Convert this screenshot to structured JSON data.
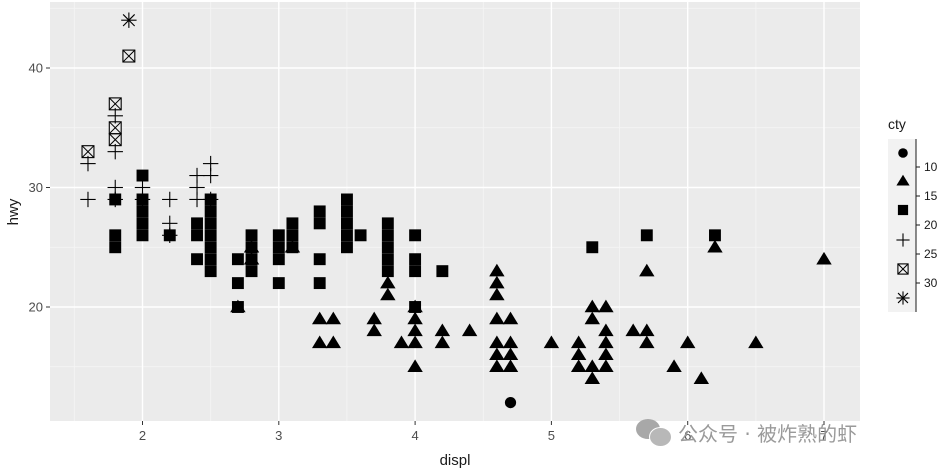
{
  "chart_data": {
    "type": "scatter",
    "title": "",
    "xlabel": "displ",
    "ylabel": "hwy",
    "xlim": [
      1.4,
      7.2
    ],
    "ylim": [
      10.4,
      44.6
    ],
    "x_ticks": [
      2,
      3,
      4,
      5,
      6,
      7
    ],
    "y_ticks": [
      20,
      30,
      40
    ],
    "grid": true,
    "legend_position": "right",
    "legend": {
      "title": "cty",
      "type": "binned-shape",
      "breaks": [
        "10",
        "15",
        "20",
        "25",
        "30"
      ],
      "shapes": [
        "circle",
        "triangle",
        "square",
        "plus",
        "boxed-x",
        "asterisk"
      ]
    },
    "points_format": "[displ, hwy, shape_index]",
    "points": [
      [
        1.6,
        29,
        3
      ],
      [
        1.6,
        32,
        3
      ],
      [
        1.6,
        33,
        4
      ],
      [
        1.8,
        25,
        2
      ],
      [
        1.8,
        26,
        2
      ],
      [
        1.8,
        29,
        2
      ],
      [
        1.8,
        29,
        3
      ],
      [
        1.8,
        30,
        3
      ],
      [
        1.8,
        33,
        3
      ],
      [
        1.8,
        34,
        4
      ],
      [
        1.8,
        35,
        4
      ],
      [
        1.8,
        36,
        3
      ],
      [
        1.8,
        37,
        4
      ],
      [
        1.9,
        41,
        4
      ],
      [
        1.9,
        44,
        5
      ],
      [
        2.0,
        26,
        2
      ],
      [
        2.0,
        27,
        2
      ],
      [
        2.0,
        28,
        2
      ],
      [
        2.0,
        29,
        2
      ],
      [
        2.0,
        29,
        3
      ],
      [
        2.0,
        30,
        3
      ],
      [
        2.0,
        31,
        2
      ],
      [
        2.2,
        26,
        2
      ],
      [
        2.2,
        26,
        3
      ],
      [
        2.2,
        27,
        3
      ],
      [
        2.2,
        29,
        3
      ],
      [
        2.4,
        24,
        2
      ],
      [
        2.4,
        26,
        2
      ],
      [
        2.4,
        27,
        2
      ],
      [
        2.4,
        29,
        3
      ],
      [
        2.4,
        30,
        3
      ],
      [
        2.4,
        31,
        3
      ],
      [
        2.5,
        23,
        2
      ],
      [
        2.5,
        24,
        2
      ],
      [
        2.5,
        25,
        2
      ],
      [
        2.5,
        26,
        2
      ],
      [
        2.5,
        27,
        2
      ],
      [
        2.5,
        28,
        2
      ],
      [
        2.5,
        29,
        2
      ],
      [
        2.5,
        29,
        3
      ],
      [
        2.5,
        31,
        3
      ],
      [
        2.5,
        32,
        3
      ],
      [
        2.7,
        20,
        1
      ],
      [
        2.7,
        20,
        2
      ],
      [
        2.7,
        22,
        2
      ],
      [
        2.7,
        24,
        2
      ],
      [
        2.8,
        23,
        2
      ],
      [
        2.8,
        24,
        1
      ],
      [
        2.8,
        24,
        2
      ],
      [
        2.8,
        25,
        1
      ],
      [
        2.8,
        25,
        2
      ],
      [
        2.8,
        26,
        2
      ],
      [
        3.0,
        22,
        2
      ],
      [
        3.0,
        24,
        2
      ],
      [
        3.0,
        25,
        2
      ],
      [
        3.0,
        26,
        2
      ],
      [
        3.1,
        25,
        1
      ],
      [
        3.1,
        25,
        2
      ],
      [
        3.1,
        26,
        2
      ],
      [
        3.1,
        27,
        2
      ],
      [
        3.3,
        17,
        1
      ],
      [
        3.3,
        19,
        1
      ],
      [
        3.3,
        22,
        2
      ],
      [
        3.3,
        24,
        2
      ],
      [
        3.3,
        27,
        2
      ],
      [
        3.3,
        28,
        2
      ],
      [
        3.4,
        17,
        1
      ],
      [
        3.4,
        19,
        1
      ],
      [
        3.5,
        25,
        2
      ],
      [
        3.5,
        26,
        2
      ],
      [
        3.5,
        27,
        2
      ],
      [
        3.5,
        28,
        2
      ],
      [
        3.5,
        29,
        2
      ],
      [
        3.6,
        26,
        2
      ],
      [
        3.7,
        18,
        1
      ],
      [
        3.7,
        19,
        1
      ],
      [
        3.8,
        21,
        1
      ],
      [
        3.8,
        22,
        1
      ],
      [
        3.8,
        23,
        2
      ],
      [
        3.8,
        24,
        2
      ],
      [
        3.8,
        25,
        2
      ],
      [
        3.8,
        26,
        2
      ],
      [
        3.8,
        27,
        2
      ],
      [
        3.9,
        17,
        1
      ],
      [
        4.0,
        15,
        1
      ],
      [
        4.0,
        17,
        1
      ],
      [
        4.0,
        18,
        1
      ],
      [
        4.0,
        19,
        1
      ],
      [
        4.0,
        20,
        1
      ],
      [
        4.0,
        20,
        2
      ],
      [
        4.0,
        23,
        2
      ],
      [
        4.0,
        24,
        2
      ],
      [
        4.0,
        26,
        2
      ],
      [
        4.2,
        17,
        1
      ],
      [
        4.2,
        18,
        1
      ],
      [
        4.2,
        23,
        2
      ],
      [
        4.4,
        18,
        1
      ],
      [
        4.6,
        15,
        1
      ],
      [
        4.6,
        16,
        1
      ],
      [
        4.6,
        17,
        1
      ],
      [
        4.6,
        19,
        1
      ],
      [
        4.6,
        21,
        1
      ],
      [
        4.6,
        22,
        1
      ],
      [
        4.6,
        23,
        1
      ],
      [
        4.7,
        12,
        0
      ],
      [
        4.7,
        15,
        1
      ],
      [
        4.7,
        16,
        1
      ],
      [
        4.7,
        17,
        1
      ],
      [
        4.7,
        19,
        1
      ],
      [
        5.0,
        17,
        1
      ],
      [
        5.2,
        15,
        1
      ],
      [
        5.2,
        16,
        1
      ],
      [
        5.2,
        17,
        1
      ],
      [
        5.3,
        14,
        1
      ],
      [
        5.3,
        15,
        1
      ],
      [
        5.3,
        19,
        1
      ],
      [
        5.3,
        20,
        1
      ],
      [
        5.3,
        25,
        2
      ],
      [
        5.4,
        15,
        1
      ],
      [
        5.4,
        16,
        1
      ],
      [
        5.4,
        17,
        1
      ],
      [
        5.4,
        18,
        1
      ],
      [
        5.4,
        20,
        1
      ],
      [
        5.6,
        18,
        1
      ],
      [
        5.7,
        17,
        1
      ],
      [
        5.7,
        18,
        1
      ],
      [
        5.7,
        23,
        1
      ],
      [
        5.7,
        26,
        2
      ],
      [
        5.9,
        15,
        1
      ],
      [
        6.0,
        17,
        1
      ],
      [
        6.1,
        14,
        1
      ],
      [
        6.2,
        25,
        1
      ],
      [
        6.2,
        26,
        2
      ],
      [
        6.5,
        17,
        1
      ],
      [
        7.0,
        24,
        1
      ]
    ]
  },
  "axes": {
    "x_ticks": [
      "2",
      "3",
      "4",
      "5",
      "6",
      "7"
    ],
    "y_ticks": [
      "20",
      "30",
      "40"
    ],
    "x_title": "displ",
    "y_title": "hwy"
  },
  "legend": {
    "title": "cty",
    "labels": [
      "10",
      "15",
      "20",
      "25",
      "30"
    ]
  },
  "colors": {
    "panel_bg": "#ebebeb",
    "grid_major": "#ffffff",
    "grid_minor": "#f5f5f5",
    "point": "#000000",
    "tick_text": "#4d4d4d",
    "watermark": "#9a9a9a"
  },
  "watermark": {
    "text": "公众号 · 被炸熟的虾"
  }
}
